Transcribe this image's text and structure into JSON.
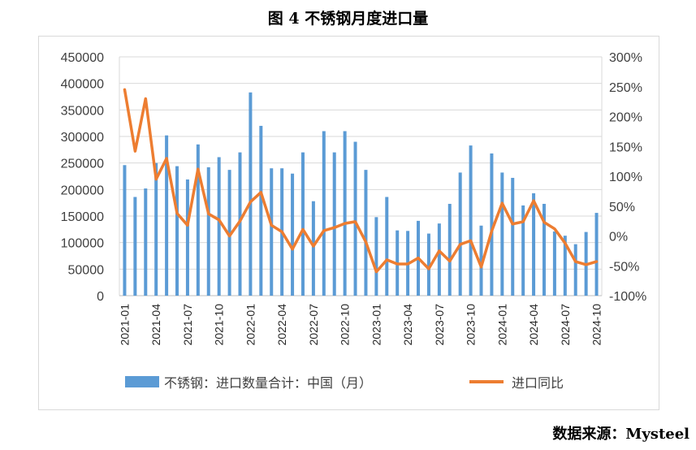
{
  "title": "图 4 不锈钢月度进口量",
  "source": "数据来源：Mysteel",
  "colors": {
    "bar": "#5b9bd5",
    "line": "#ed7d31",
    "grid": "#d9d9d9"
  },
  "chart_data": {
    "type": "bar+line",
    "title": "图 4 不锈钢月度进口量",
    "x": [
      "2021-01",
      "2021-02",
      "2021-03",
      "2021-04",
      "2021-05",
      "2021-06",
      "2021-07",
      "2021-08",
      "2021-09",
      "2021-10",
      "2021-11",
      "2021-12",
      "2022-01",
      "2022-02",
      "2022-03",
      "2022-04",
      "2022-05",
      "2022-06",
      "2022-07",
      "2022-08",
      "2022-09",
      "2022-10",
      "2022-11",
      "2022-12",
      "2023-01",
      "2023-02",
      "2023-03",
      "2023-04",
      "2023-05",
      "2023-06",
      "2023-07",
      "2023-08",
      "2023-09",
      "2023-10",
      "2023-11",
      "2023-12",
      "2024-01",
      "2024-02",
      "2024-03",
      "2024-04",
      "2024-05",
      "2024-06",
      "2024-07",
      "2024-08",
      "2024-09",
      "2024-10"
    ],
    "xticks": [
      "2021-01",
      "2021-04",
      "2021-07",
      "2021-10",
      "2022-01",
      "2022-04",
      "2022-07",
      "2022-10",
      "2023-01",
      "2023-04",
      "2023-07",
      "2023-10",
      "2024-01",
      "2024-04",
      "2024-07",
      "2024-10"
    ],
    "y_left": {
      "ylim": [
        0,
        450000
      ],
      "ticks": [
        0,
        50000,
        100000,
        150000,
        200000,
        250000,
        300000,
        350000,
        400000,
        450000
      ]
    },
    "y_right": {
      "ylim": [
        -1.0,
        3.0
      ],
      "ticks": [
        "-100%",
        "-50%",
        "0%",
        "50%",
        "100%",
        "150%",
        "200%",
        "250%",
        "300%"
      ]
    },
    "series": [
      {
        "name": "不锈钢：进口数量合计：中国（月）",
        "type": "bar",
        "axis": "left",
        "values": [
          246000,
          186000,
          202000,
          250000,
          302000,
          244000,
          219000,
          285000,
          242000,
          261000,
          237000,
          270000,
          383000,
          320000,
          240000,
          240000,
          230000,
          270000,
          178000,
          310000,
          270000,
          310000,
          290000,
          237000,
          148000,
          186000,
          123000,
          122000,
          141000,
          117000,
          136000,
          173000,
          232000,
          283000,
          132000,
          268000,
          232000,
          222000,
          170000,
          193000,
          173000,
          121000,
          113000,
          97000,
          120000,
          156000
        ]
      },
      {
        "name": "进口同比",
        "type": "line",
        "axis": "right",
        "values": [
          2.45,
          1.42,
          2.3,
          0.95,
          1.3,
          0.38,
          0.18,
          1.12,
          0.37,
          0.27,
          0.0,
          0.25,
          0.57,
          0.73,
          0.18,
          0.07,
          -0.22,
          0.11,
          -0.17,
          0.09,
          0.14,
          0.21,
          0.24,
          -0.1,
          -0.6,
          -0.4,
          -0.47,
          -0.47,
          -0.37,
          -0.55,
          -0.25,
          -0.42,
          -0.14,
          -0.08,
          -0.52,
          0.08,
          0.55,
          0.2,
          0.24,
          0.59,
          0.23,
          0.12,
          -0.12,
          -0.43,
          -0.48,
          -0.43
        ]
      }
    ],
    "legend_position": "bottom",
    "grid": true
  }
}
